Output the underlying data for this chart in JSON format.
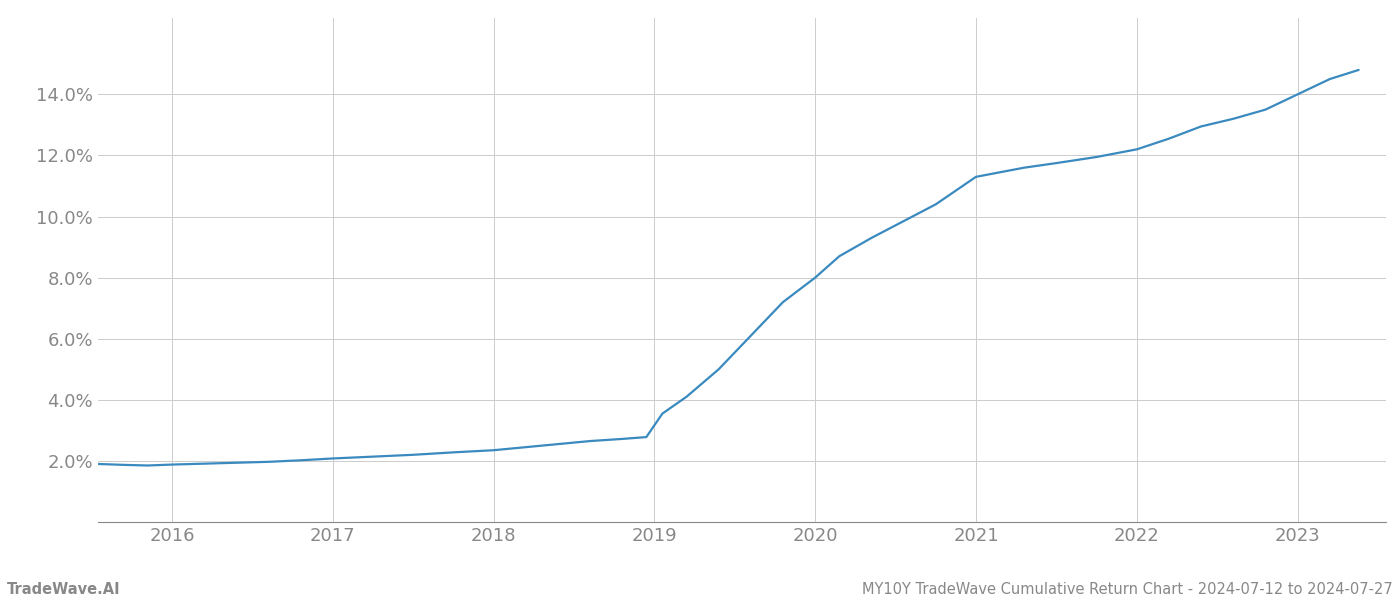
{
  "title": "",
  "footer_left": "TradeWave.AI",
  "footer_right": "MY10Y TradeWave Cumulative Return Chart - 2024-07-12 to 2024-07-27",
  "line_color": "#3a8abf",
  "background_color": "#ffffff",
  "grid_color": "#cccccc",
  "text_color": "#888888",
  "x_years": [
    2016,
    2017,
    2018,
    2019,
    2020,
    2021,
    2022,
    2023
  ],
  "x_data": [
    2015.54,
    2015.7,
    2015.85,
    2016.0,
    2016.2,
    2016.4,
    2016.6,
    2016.8,
    2017.0,
    2017.25,
    2017.5,
    2017.75,
    2018.0,
    2018.2,
    2018.4,
    2018.6,
    2018.8,
    2018.95,
    2019.05,
    2019.2,
    2019.4,
    2019.6,
    2019.8,
    2020.0,
    2020.15,
    2020.35,
    2020.55,
    2020.75,
    2021.0,
    2021.15,
    2021.3,
    2021.5,
    2021.75,
    2022.0,
    2022.2,
    2022.4,
    2022.6,
    2022.8,
    2023.0,
    2023.2,
    2023.38
  ],
  "y_data": [
    1.9,
    1.87,
    1.85,
    1.88,
    1.91,
    1.94,
    1.97,
    2.02,
    2.08,
    2.14,
    2.2,
    2.28,
    2.35,
    2.45,
    2.55,
    2.65,
    2.72,
    2.78,
    3.55,
    4.1,
    5.0,
    6.1,
    7.2,
    8.0,
    8.7,
    9.3,
    9.85,
    10.4,
    11.3,
    11.45,
    11.6,
    11.75,
    11.95,
    12.2,
    12.55,
    12.95,
    13.2,
    13.5,
    14.0,
    14.5,
    14.8
  ],
  "ylim": [
    0,
    16.5
  ],
  "xlim": [
    2015.54,
    2023.55
  ],
  "yticks": [
    2.0,
    4.0,
    6.0,
    8.0,
    10.0,
    12.0,
    14.0
  ],
  "footer_fontsize": 10.5,
  "tick_fontsize": 13,
  "line_width": 1.6
}
